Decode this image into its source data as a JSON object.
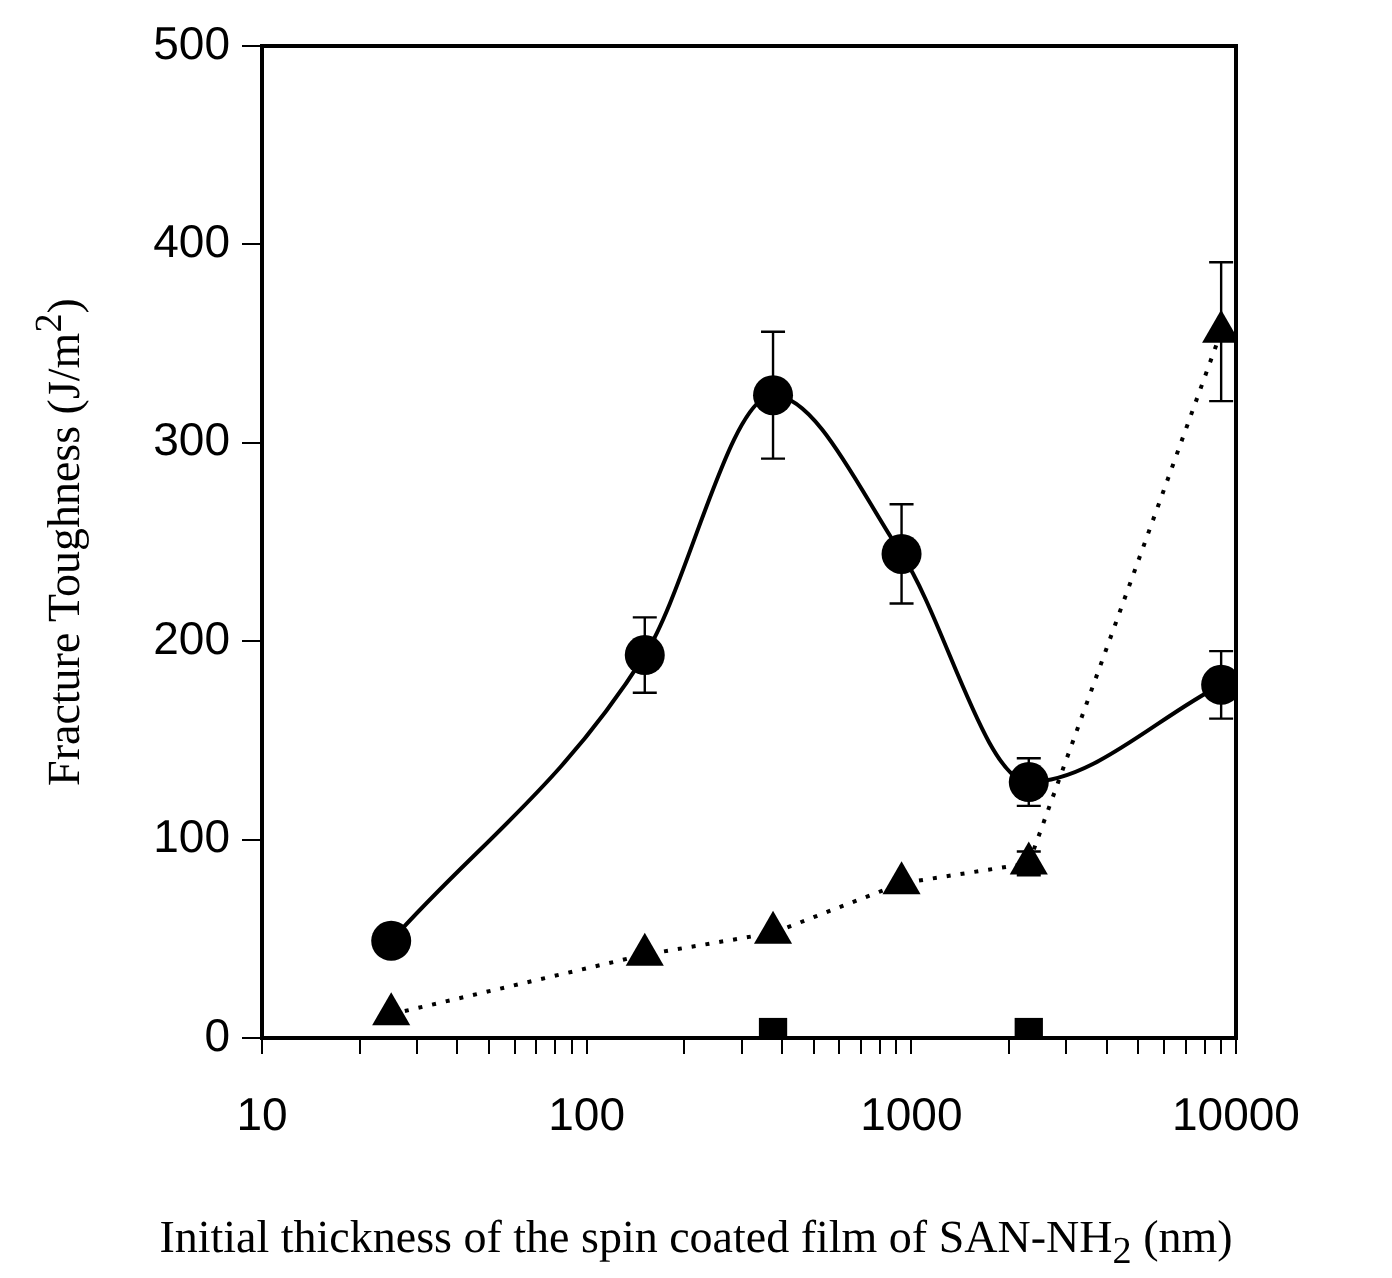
{
  "chart_data": {
    "type": "line",
    "xlabel": "Initial thickness of the spin coated film of SAN-NH$_{2}$ (nm)",
    "ylabel": "Fracture Toughness (J/m$^{2}$)",
    "log": "x",
    "xlim": [
      10,
      10000
    ],
    "ylim": [
      0,
      500
    ],
    "yticks": [
      0,
      100,
      200,
      300,
      400,
      500
    ],
    "xticks": [
      10,
      {
        "value": 20,
        "label": null
      },
      {
        "value": 30,
        "label": null
      },
      {
        "value": 40,
        "label": null
      },
      {
        "value": 50,
        "label": null
      },
      {
        "value": 60,
        "label": null
      },
      {
        "value": 70,
        "label": null
      },
      {
        "value": 80,
        "label": null
      },
      {
        "value": 90,
        "label": null
      },
      100,
      {
        "value": 200,
        "label": null
      },
      {
        "value": 300,
        "label": null
      },
      {
        "value": 400,
        "label": null
      },
      {
        "value": 500,
        "label": null
      },
      {
        "value": 600,
        "label": null
      },
      {
        "value": 700,
        "label": null
      },
      {
        "value": 800,
        "label": null
      },
      {
        "value": 900,
        "label": null
      },
      1000,
      {
        "value": 2000,
        "label": null
      },
      {
        "value": 3000,
        "label": null
      },
      {
        "value": 4000,
        "label": null
      },
      {
        "value": 5000,
        "label": null
      },
      {
        "value": 6000,
        "label": null
      },
      {
        "value": 7000,
        "label": null
      },
      {
        "value": 8000,
        "label": null
      },
      {
        "value": 9000,
        "label": null
      },
      10000
    ],
    "grid": false,
    "legend": false,
    "series": [
      {
        "type": "line",
        "color": "#000000",
        "marker": "circle",
        "line_style": "solid",
        "x": [
          25,
          151,
          375,
          933,
          2300,
          9000
        ],
        "values": [
          49,
          193,
          324,
          244,
          129,
          178
        ],
        "errors": [
          null,
          19,
          32,
          25,
          12,
          17
        ]
      },
      {
        "type": "line",
        "color": "#000000",
        "marker": "triangle",
        "line_style": "dotted",
        "x": [
          25,
          151,
          375,
          933,
          2300,
          9000
        ],
        "values": [
          12,
          42,
          53,
          78,
          88,
          356
        ],
        "errors": [
          null,
          null,
          null,
          null,
          6,
          35
        ]
      },
      {
        "type": "scatter",
        "color": "#000000",
        "marker": "square",
        "x": [
          375,
          2300
        ],
        "values": [
          3,
          3
        ]
      }
    ]
  }
}
